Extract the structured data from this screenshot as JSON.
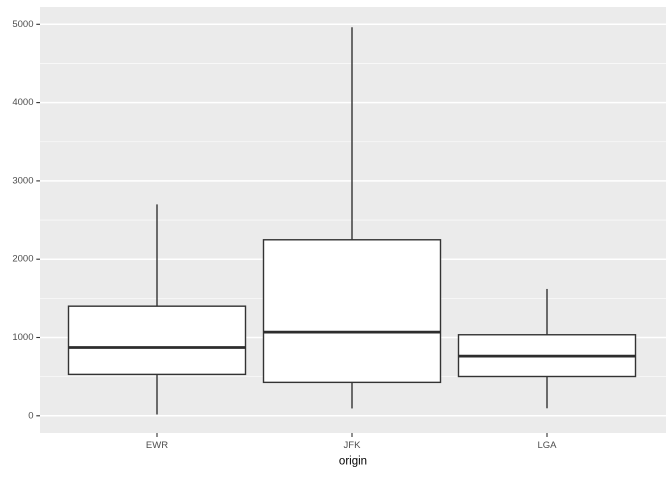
{
  "chart_data": {
    "type": "boxplot",
    "title": "",
    "xlabel": "origin",
    "ylabel": "",
    "categories": [
      "EWR",
      "JFK",
      "LGA"
    ],
    "series": [
      {
        "name": "EWR",
        "whisker_low": 17,
        "q1": 529,
        "median": 872,
        "q3": 1400,
        "whisker_high": 2700,
        "outliers": []
      },
      {
        "name": "JFK",
        "whisker_low": 94,
        "q1": 427,
        "median": 1069,
        "q3": 2248,
        "whisker_high": 4963,
        "outliers": []
      },
      {
        "name": "LGA",
        "whisker_low": 96,
        "q1": 502,
        "median": 762,
        "q3": 1035,
        "whisker_high": 1620,
        "outliers": []
      }
    ],
    "yaxis": {
      "tick_values": [
        0,
        1000,
        2000,
        3000,
        4000,
        5000
      ],
      "tick_labels": [
        "0",
        "1000",
        "2000",
        "3000",
        "4000",
        "5000"
      ],
      "minor_tick_values": [
        500,
        1500,
        2500,
        3500,
        4500
      ],
      "range": [
        -190,
        5225
      ]
    },
    "legend": "none",
    "grid": "major-and-minor-horizontal",
    "style": "ggplot2-gray-theme",
    "colors": {
      "panel_background": "#EBEBEB",
      "grid_major": "#FFFFFF",
      "grid_minor": "#FFFFFF",
      "box_fill": "#FFFFFF",
      "box_stroke": "#333333",
      "median_stroke": "#2D2D2D",
      "tick_mark": "#333333",
      "tick_label_text": "#4D4D4D",
      "axis_title_text": "#000000"
    }
  }
}
